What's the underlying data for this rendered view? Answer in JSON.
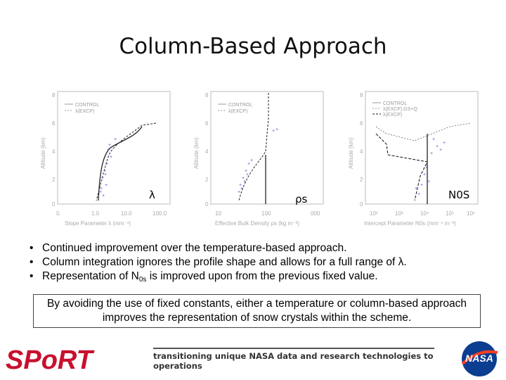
{
  "title": "Column-Based Approach",
  "panels": [
    {
      "label": "λ",
      "y_axis_label": "Altitude (km)",
      "x_axis_label": "Slope Parameter λ (mm⁻¹)",
      "y_ticks": [
        "8",
        "6",
        "4",
        "2",
        "0"
      ],
      "x_ticks": [
        "0.",
        "1.0",
        "10.0",
        "100.0"
      ],
      "legend": [
        "CONTROL",
        "λ(EXCP)"
      ]
    },
    {
      "label": "ρs",
      "y_axis_label": "Altitude (km)",
      "x_axis_label": "Effective Bulk Density ρs (kg m⁻³)",
      "y_ticks": [
        "8",
        "6",
        "4",
        "2",
        "0"
      ],
      "x_ticks": [
        "10",
        "100",
        "000"
      ],
      "legend": [
        "CONTROL",
        "λ(EXCP)"
      ]
    },
    {
      "label": "N0S",
      "y_axis_label": "Altitude (km)",
      "x_axis_label": "Intercept Parameter N0s (mm⁻¹ m⁻³)",
      "y_ticks": [
        "8",
        "6",
        "4",
        "2",
        "0"
      ],
      "x_ticks": [
        "10²",
        "10³",
        "10⁴",
        "10⁵",
        "10⁶"
      ],
      "legend": [
        "CONTROL",
        "λ(EXCP),GS+Q",
        "λ(EXCP)"
      ]
    }
  ],
  "bullets": {
    "b1": "Continued improvement over the temperature-based approach.",
    "b2": "Column integration ignores the profile shape and allows for a full range of λ.",
    "b3_pre": "Representation of N",
    "b3_sub": "0s",
    "b3_post": " is improved upon from the previous fixed value."
  },
  "box_text": "By avoiding the use of fixed constants, either a temperature or column-based approach improves the representation of snow crystals within the scheme.",
  "footer": {
    "tagline": "transitioning unique NASA data and research technologies to operations",
    "logo_left": "SPoRT",
    "logo_right": "NASA"
  },
  "colors": {
    "sport_red": "#c8102e",
    "nasa_blue": "#0b3d91",
    "nasa_red": "#fc3d21",
    "obs_blue": "#5a5ad8"
  }
}
